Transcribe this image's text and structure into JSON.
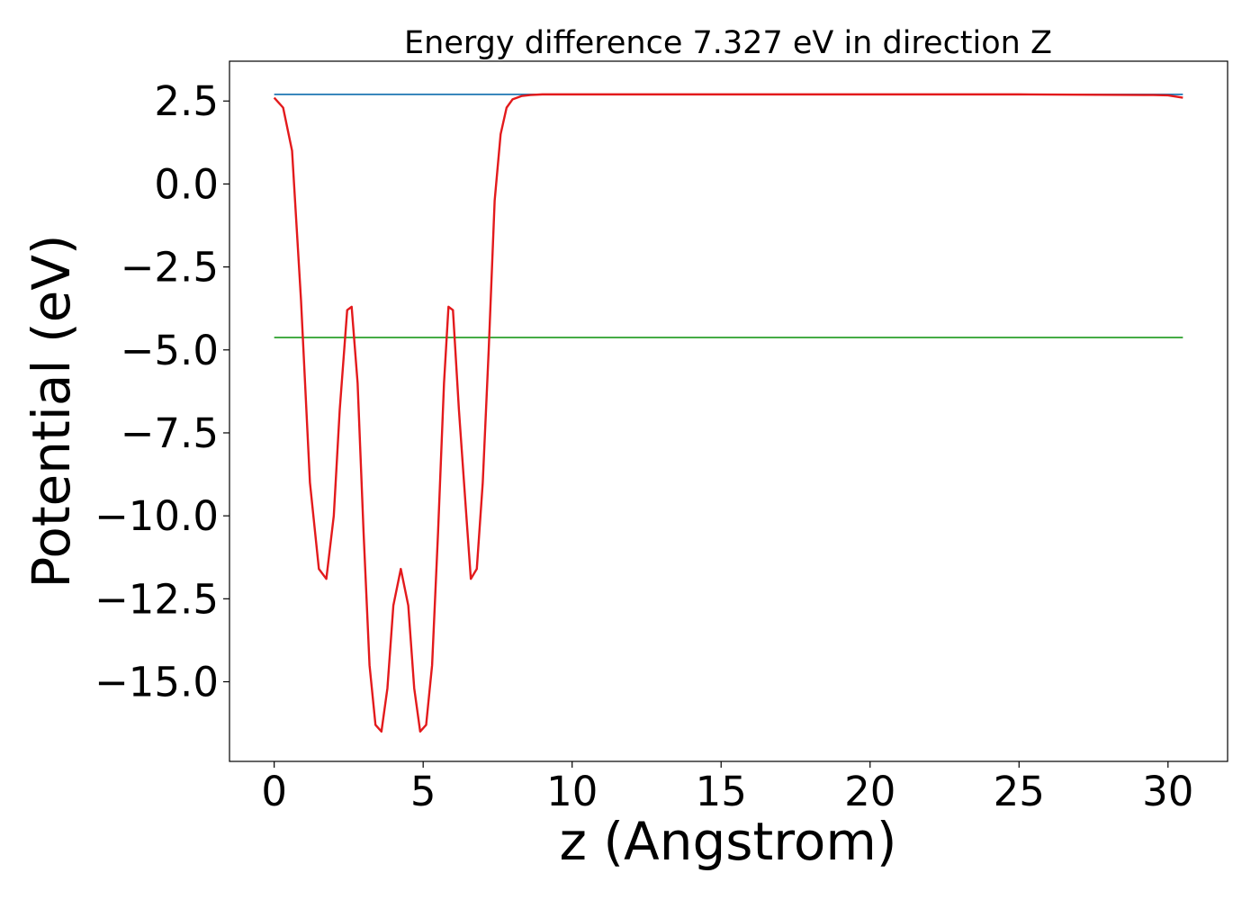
{
  "chart_data": {
    "type": "line",
    "title": "Energy difference 7.327 eV in direction Z",
    "xlabel": "z (Angstrom)",
    "ylabel": "Potential (eV)",
    "xlim": [
      -1.5,
      32.0
    ],
    "ylim": [
      -17.4,
      3.7
    ],
    "xticks": [
      0,
      5,
      10,
      15,
      20,
      25,
      30
    ],
    "xtick_labels": [
      "0",
      "5",
      "10",
      "15",
      "20",
      "25",
      "30"
    ],
    "yticks": [
      2.5,
      0.0,
      -2.5,
      -5.0,
      -7.5,
      -10.0,
      -12.5,
      -15.0
    ],
    "ytick_labels": [
      "2.5",
      "0.0",
      "−2.5",
      "−5.0",
      "−7.5",
      "−10.0",
      "−12.5",
      "−15.0"
    ],
    "grid": false,
    "series": [
      {
        "color": "#1f77b4",
        "x": [
          0,
          30.5
        ],
        "y": [
          2.7,
          2.7
        ]
      },
      {
        "color": "#2ca02c",
        "x": [
          0,
          30.5
        ],
        "y": [
          -4.627,
          -4.627
        ]
      },
      {
        "color": "#e31a1c",
        "x": [
          0.0,
          0.3,
          0.6,
          0.9,
          1.2,
          1.5,
          1.75,
          2.0,
          2.2,
          2.45,
          2.6,
          2.8,
          3.0,
          3.2,
          3.4,
          3.6,
          3.8,
          4.0,
          4.25,
          4.5,
          4.7,
          4.9,
          5.1,
          5.3,
          5.5,
          5.7,
          5.85,
          6.0,
          6.2,
          6.45,
          6.6,
          6.8,
          7.0,
          7.2,
          7.4,
          7.6,
          7.8,
          8.0,
          8.3,
          8.6,
          9.0,
          9.5,
          10.5,
          15.0,
          20.0,
          25.0,
          29.5,
          30.0,
          30.5
        ],
        "y": [
          2.6,
          2.3,
          1.0,
          -3.5,
          -9.0,
          -11.6,
          -11.9,
          -10.0,
          -6.8,
          -3.8,
          -3.7,
          -6.0,
          -10.5,
          -14.5,
          -16.3,
          -16.5,
          -15.2,
          -12.7,
          -11.6,
          -12.7,
          -15.2,
          -16.5,
          -16.3,
          -14.5,
          -10.5,
          -6.0,
          -3.7,
          -3.8,
          -6.8,
          -10.0,
          -11.9,
          -11.6,
          -9.0,
          -5.0,
          -0.5,
          1.5,
          2.3,
          2.55,
          2.65,
          2.68,
          2.7,
          2.7,
          2.7,
          2.7,
          2.7,
          2.7,
          2.68,
          2.67,
          2.6
        ]
      }
    ]
  }
}
